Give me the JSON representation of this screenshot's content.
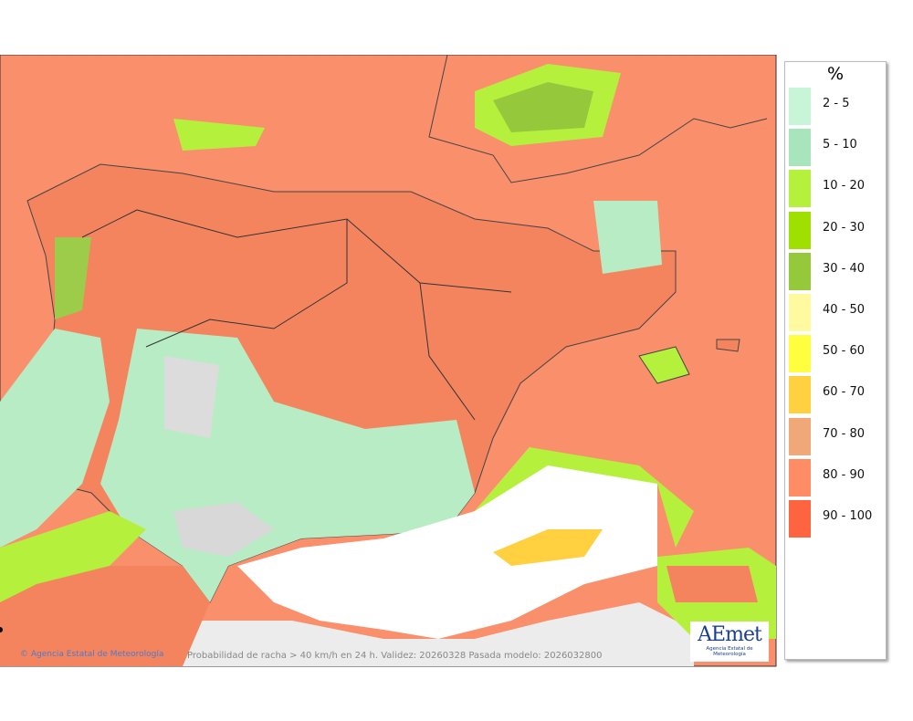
{
  "legend": {
    "title": "%",
    "items": [
      {
        "label": "2 - 5",
        "color": "#c8f5d8"
      },
      {
        "label": "5 - 10",
        "color": "#a8e4bc"
      },
      {
        "label": "10 - 20",
        "color": "#b5f03c"
      },
      {
        "label": "20 - 30",
        "color": "#a0e000"
      },
      {
        "label": "30 - 40",
        "color": "#96c83c"
      },
      {
        "label": "40 - 50",
        "color": "#fffaa0"
      },
      {
        "label": "50 - 60",
        "color": "#ffff40"
      },
      {
        "label": "60 - 70",
        "color": "#ffd040"
      },
      {
        "label": "70 - 80",
        "color": "#f0a878"
      },
      {
        "label": "80 - 90",
        "color": "#ff8c64"
      },
      {
        "label": "90 - 100",
        "color": "#ff6440"
      }
    ]
  },
  "footer": {
    "credit": "Agencia Estatal de Meteorología",
    "caption": "Probabilidad de racha > 40 km/h en 24 h. Validez: 20260328 Pasada modelo: 2026032800"
  },
  "logo": {
    "text": "AEmet",
    "subtitle": "Agencia Estatal de Meteorología"
  }
}
